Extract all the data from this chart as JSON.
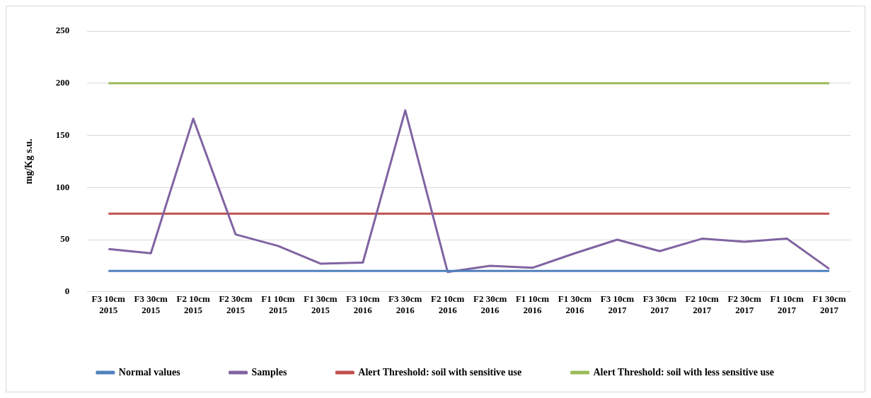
{
  "chart_data": {
    "type": "line",
    "ylabel": "mg/Kg s.u.",
    "categories": [
      "F3 10cm\n2015",
      "F3 30cm\n2015",
      "F2 10cm\n2015",
      "F2 30cm\n2015",
      "F1 10cm\n2015",
      "F1 30cm\n2015",
      "F3 10cm\n2016",
      "F3 30cm\n2016",
      "F2 10cm\n2016",
      "F2 30cm\n2016",
      "F1 10cm\n2016",
      "F1 30cm\n2016",
      "F3 10cm\n2017",
      "F3 30cm\n2017",
      "F2 10cm\n2017",
      "F2 30cm\n2017",
      "F1 10cm\n2017",
      "F1 30cm\n2017"
    ],
    "series": [
      {
        "name": "Normal values",
        "color": "#4f81bd",
        "values": [
          20,
          20,
          20,
          20,
          20,
          20,
          20,
          20,
          20,
          20,
          20,
          20,
          20,
          20,
          20,
          20,
          20,
          20
        ]
      },
      {
        "name": "Samples",
        "color": "#8064a2",
        "values": [
          41,
          37,
          166,
          55,
          44,
          27,
          28,
          174,
          19,
          25,
          23,
          37,
          50,
          39,
          51,
          48,
          51,
          22
        ]
      },
      {
        "name": "Alert Threshold: soil with sensitive use",
        "color": "#c0504d",
        "values": [
          75,
          75,
          75,
          75,
          75,
          75,
          75,
          75,
          75,
          75,
          75,
          75,
          75,
          75,
          75,
          75,
          75,
          75
        ]
      },
      {
        "name": "Alert Threshold: soil with less sensitive use",
        "color": "#9bbb59",
        "values": [
          200,
          200,
          200,
          200,
          200,
          200,
          200,
          200,
          200,
          200,
          200,
          200,
          200,
          200,
          200,
          200,
          200,
          200
        ]
      }
    ],
    "ylim": [
      0,
      250
    ],
    "yticks": [
      0,
      50,
      100,
      150,
      200,
      250
    ],
    "grid": "y",
    "legend": "bottom",
    "marker": "none",
    "line_style": "solid"
  }
}
